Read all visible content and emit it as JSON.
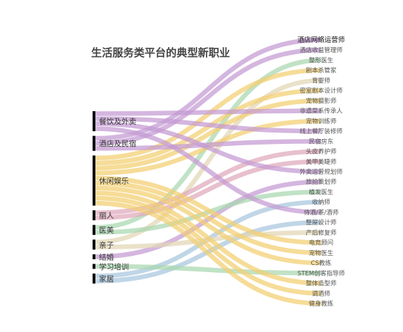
{
  "title": "生活服务类平台的典型新职业",
  "colors": {
    "purple": "#c49ad2",
    "yellow": "#f2cf70",
    "green": "#a7d7ae",
    "blue": "#a8c6de",
    "pink": "#dfa8bb",
    "beige": "#e2d6b4",
    "source_bar": "#111111"
  },
  "sources": [
    {
      "name": "餐饮及外卖",
      "color": "purple"
    },
    {
      "name": "酒店及民宿",
      "color": "purple"
    },
    {
      "name": "休闲娱乐",
      "color": "yellow"
    },
    {
      "name": "丽人",
      "color": "pink"
    },
    {
      "name": "医美",
      "color": "green"
    },
    {
      "name": "亲子",
      "color": "beige"
    },
    {
      "name": "结婚",
      "color": "purple"
    },
    {
      "name": "学习培训",
      "color": "green"
    },
    {
      "name": "家居",
      "color": "blue"
    }
  ],
  "targets": [
    {
      "name": "酒店网络运营师"
    },
    {
      "name": "酒店收益管理师"
    },
    {
      "name": "整形医生"
    },
    {
      "name": "剧本杀管家"
    },
    {
      "name": "育婴师"
    },
    {
      "name": "密室剧本设计师"
    },
    {
      "name": "宠物摄影师"
    },
    {
      "name": "非遗菜系传承人"
    },
    {
      "name": "宠物训练师"
    },
    {
      "name": "线上餐厅装修师"
    },
    {
      "name": "民宿房东"
    },
    {
      "name": "头皮养护师"
    },
    {
      "name": "美甲美睫师"
    },
    {
      "name": "外卖运营规划师"
    },
    {
      "name": "旅拍策划师"
    },
    {
      "name": "植发医生"
    },
    {
      "name": "收纳师"
    },
    {
      "name": "侍酒/茶/酒师"
    },
    {
      "name": "整屋设计师"
    },
    {
      "name": "产后修复师"
    },
    {
      "name": "电竞顾问"
    },
    {
      "name": "宠物医生"
    },
    {
      "name": "CS教练"
    },
    {
      "name": "STEM创客指导师"
    },
    {
      "name": "整体造型师"
    },
    {
      "name": "调酒师"
    },
    {
      "name": "健身教练"
    }
  ],
  "flows": [
    {
      "source": "酒店及民宿",
      "target": "酒店网络运营师",
      "value": 1
    },
    {
      "source": "酒店及民宿",
      "target": "酒店收益管理师",
      "value": 1
    },
    {
      "source": "医美",
      "target": "整形医生",
      "value": 1
    },
    {
      "source": "休闲娱乐",
      "target": "剧本杀管家",
      "value": 1
    },
    {
      "source": "亲子",
      "target": "育婴师",
      "value": 1
    },
    {
      "source": "休闲娱乐",
      "target": "密室剧本设计师",
      "value": 1
    },
    {
      "source": "休闲娱乐",
      "target": "宠物摄影师",
      "value": 1
    },
    {
      "source": "餐饮及外卖",
      "target": "非遗菜系传承人",
      "value": 1
    },
    {
      "source": "休闲娱乐",
      "target": "宠物训练师",
      "value": 1
    },
    {
      "source": "餐饮及外卖",
      "target": "线上餐厅装修师",
      "value": 1
    },
    {
      "source": "酒店及民宿",
      "target": "民宿房东",
      "value": 1
    },
    {
      "source": "丽人",
      "target": "头皮养护师",
      "value": 1
    },
    {
      "source": "丽人",
      "target": "美甲美睫师",
      "value": 1
    },
    {
      "source": "餐饮及外卖",
      "target": "外卖运营规划师",
      "value": 1
    },
    {
      "source": "结婚",
      "target": "旅拍策划师",
      "value": 1
    },
    {
      "source": "医美",
      "target": "植发医生",
      "value": 1
    },
    {
      "source": "家居",
      "target": "收纳师",
      "value": 1
    },
    {
      "source": "餐饮及外卖",
      "target": "侍酒/茶/酒师",
      "value": 1
    },
    {
      "source": "家居",
      "target": "整屋设计师",
      "value": 1
    },
    {
      "source": "亲子",
      "target": "产后修复师",
      "value": 1
    },
    {
      "source": "休闲娱乐",
      "target": "电竞顾问",
      "value": 1
    },
    {
      "source": "休闲娱乐",
      "target": "宠物医生",
      "value": 1
    },
    {
      "source": "休闲娱乐",
      "target": "CS教练",
      "value": 1
    },
    {
      "source": "学习培训",
      "target": "STEM创客指导师",
      "value": 1
    },
    {
      "source": "休闲娱乐",
      "target": "整体造型师",
      "value": 1
    },
    {
      "source": "休闲娱乐",
      "target": "调酒师",
      "value": 1
    },
    {
      "source": "休闲娱乐",
      "target": "健身教练",
      "value": 1
    }
  ]
}
